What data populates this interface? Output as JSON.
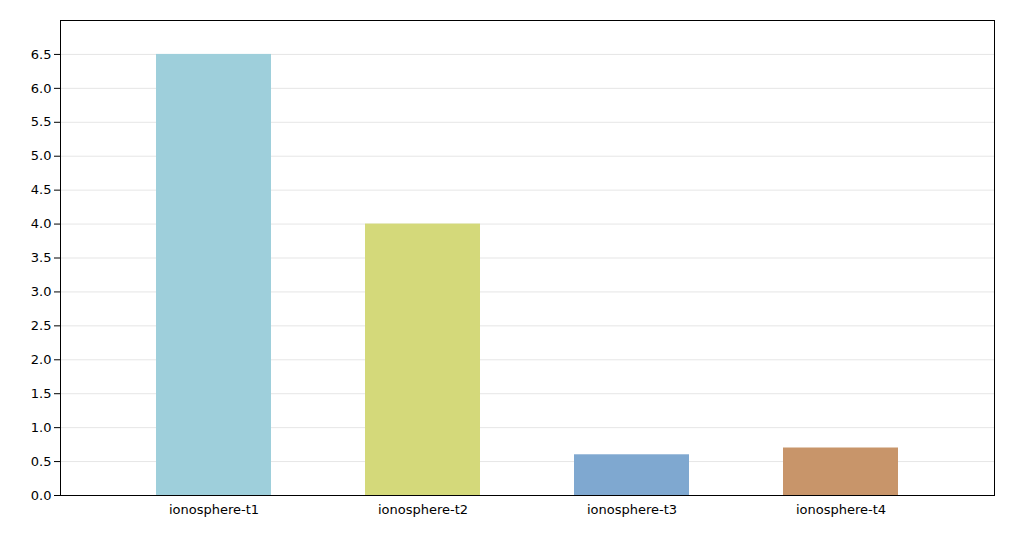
{
  "chart_data": {
    "type": "bar",
    "categories": [
      "ionosphere-t1",
      "ionosphere-t2",
      "ionosphere-t3",
      "ionosphere-t4"
    ],
    "values": [
      6.5,
      4.0,
      0.6,
      0.7
    ],
    "colors": [
      "#9ecfdb",
      "#d4d97a",
      "#7fa8d0",
      "#c8956a"
    ],
    "ylim": [
      0,
      7.0
    ],
    "yticks": [
      {
        "value": 0,
        "label": "0.0"
      },
      0.5,
      {
        "value": 1,
        "label": "1.0"
      },
      1.5,
      {
        "value": 2,
        "label": "2.0"
      },
      2.5,
      {
        "value": 3,
        "label": "3.0"
      },
      3.5,
      {
        "value": 4,
        "label": "4.0"
      },
      4.5,
      {
        "value": 5,
        "label": "5.0"
      },
      5.5,
      {
        "value": 6,
        "label": "6.0"
      },
      6.5
    ],
    "grid": true
  }
}
